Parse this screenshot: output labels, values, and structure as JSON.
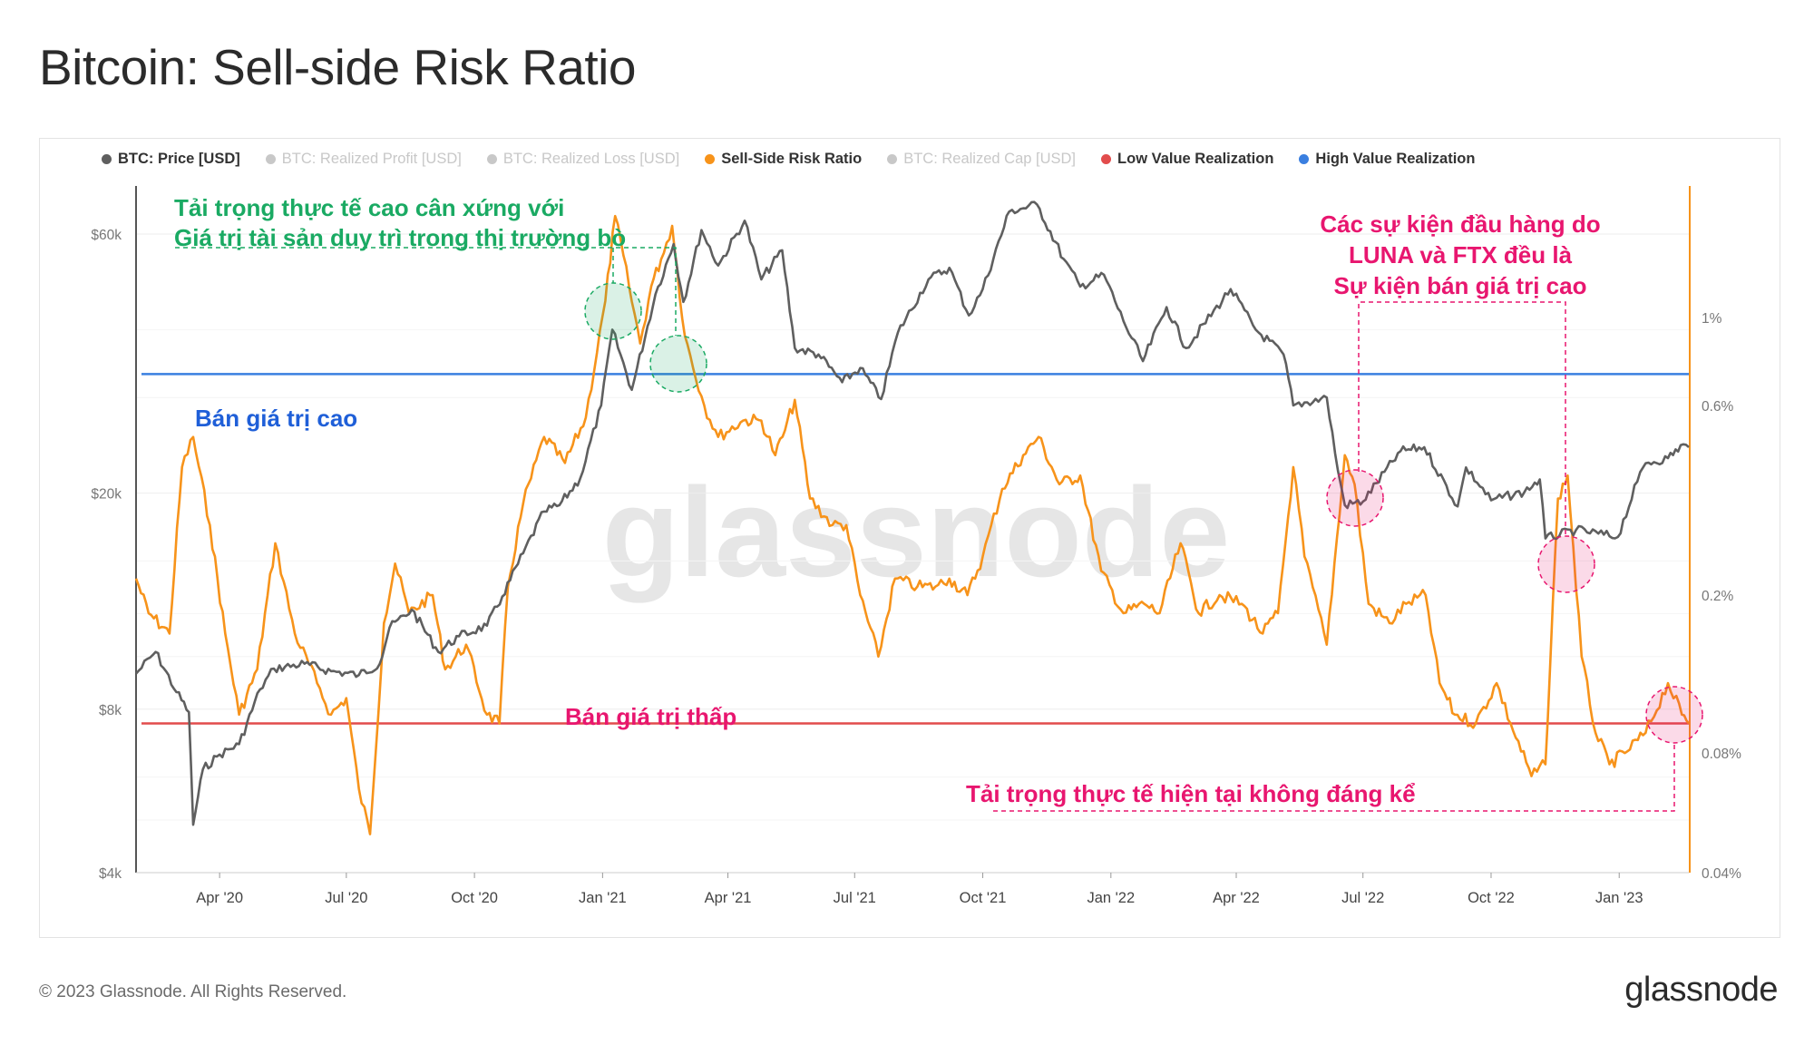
{
  "title": "Bitcoin: Sell-side Risk Ratio",
  "legend": [
    {
      "label": "BTC: Price [USD]",
      "color": "#5f5f5f",
      "active": true
    },
    {
      "label": "BTC: Realized Profit [USD]",
      "color": "#1a9e3f",
      "active": false
    },
    {
      "label": "BTC: Realized Loss [USD]",
      "color": "#e8166f",
      "active": false
    },
    {
      "label": "Sell-Side Risk Ratio",
      "color": "#f7931a",
      "active": true
    },
    {
      "label": "BTC: Realized Cap [USD]",
      "color": "#e8630c",
      "active": false
    },
    {
      "label": "Low Value Realization",
      "color": "#e24c4c",
      "active": true
    },
    {
      "label": "High Value Realization",
      "color": "#3a7fe0",
      "active": true
    }
  ],
  "footer": "© 2023 Glassnode. All Rights Reserved.",
  "logo": "glassnode",
  "watermark": "glassnode",
  "annotations": {
    "high_value": "Bán giá trị cao",
    "low_value": "Bán giá trị thấp",
    "bull_line1": "Tải trọng thực tế cao cân xứng với",
    "bull_line2": "Giá trị tài sản duy trì trong thị trường bò",
    "capit_line1": "Các sự kiện đầu hàng do",
    "capit_line2": "LUNA và FTX đều là",
    "capit_line3": "Sự kiện bán giá trị cao",
    "current": "Tải trọng thực tế hiện tại không đáng kể"
  },
  "colors": {
    "price": "#5f5f5f",
    "ratio": "#f7931a",
    "high": "#3a7fe0",
    "low": "#e24c4c",
    "green": "#1aaa63",
    "pink": "#e8166f"
  },
  "chart_data": {
    "type": "line",
    "x_ticks": [
      "Apr '20",
      "Jul '20",
      "Oct '20",
      "Jan '21",
      "Apr '21",
      "Jul '21",
      "Oct '21",
      "Jan '22",
      "Apr '22",
      "Jul '22",
      "Oct '22",
      "Jan '23"
    ],
    "y_left_ticks": [
      "$60k",
      "$20k",
      "$8k",
      "$4k"
    ],
    "y_right_ticks": [
      "1%",
      "0.6%",
      "0.2%",
      "0.08%",
      "0.04%"
    ],
    "y_left_scale": "log",
    "y_right_scale": "log",
    "x_range": [
      "2020-02-01",
      "2023-02-20"
    ],
    "y_left_range": [
      4000,
      75000
    ],
    "y_right_range": [
      0.04,
      2.2
    ],
    "high_value_level": 0.72,
    "low_value_level": 0.095,
    "series": [
      {
        "name": "BTC: Price [USD]",
        "axis": "left",
        "points": [
          [
            "2020-02-01",
            9300
          ],
          [
            "2020-02-15",
            10200
          ],
          [
            "2020-03-01",
            8600
          ],
          [
            "2020-03-10",
            7900
          ],
          [
            "2020-03-13",
            4900
          ],
          [
            "2020-03-20",
            6200
          ],
          [
            "2020-04-01",
            6600
          ],
          [
            "2020-04-15",
            6900
          ],
          [
            "2020-04-30",
            8700
          ],
          [
            "2020-05-10",
            9500
          ],
          [
            "2020-06-01",
            9700
          ],
          [
            "2020-06-20",
            9400
          ],
          [
            "2020-07-10",
            9250
          ],
          [
            "2020-07-25",
            9700
          ],
          [
            "2020-08-01",
            11300
          ],
          [
            "2020-08-17",
            12200
          ],
          [
            "2020-09-05",
            10200
          ],
          [
            "2020-09-20",
            10900
          ],
          [
            "2020-10-10",
            11400
          ],
          [
            "2020-10-21",
            12900
          ],
          [
            "2020-11-05",
            15500
          ],
          [
            "2020-11-20",
            18500
          ],
          [
            "2020-12-01",
            19000
          ],
          [
            "2020-12-16",
            21300
          ],
          [
            "2020-12-31",
            29000
          ],
          [
            "2021-01-08",
            40000
          ],
          [
            "2021-01-22",
            31000
          ],
          [
            "2021-02-08",
            46500
          ],
          [
            "2021-02-21",
            57500
          ],
          [
            "2021-02-28",
            45000
          ],
          [
            "2021-03-13",
            61000
          ],
          [
            "2021-03-25",
            52500
          ],
          [
            "2021-04-13",
            63500
          ],
          [
            "2021-04-25",
            49500
          ],
          [
            "2021-05-10",
            56000
          ],
          [
            "2021-05-19",
            37000
          ],
          [
            "2021-06-05",
            36000
          ],
          [
            "2021-06-22",
            32000
          ],
          [
            "2021-07-05",
            34000
          ],
          [
            "2021-07-20",
            29800
          ],
          [
            "2021-08-01",
            39500
          ],
          [
            "2021-08-23",
            49500
          ],
          [
            "2021-09-07",
            52000
          ],
          [
            "2021-09-21",
            42500
          ],
          [
            "2021-10-01",
            47500
          ],
          [
            "2021-10-20",
            66000
          ],
          [
            "2021-11-09",
            68000
          ],
          [
            "2021-11-28",
            54000
          ],
          [
            "2021-12-10",
            48000
          ],
          [
            "2021-12-27",
            50500
          ],
          [
            "2022-01-10",
            41500
          ],
          [
            "2022-01-24",
            35000
          ],
          [
            "2022-02-10",
            44000
          ],
          [
            "2022-02-24",
            37000
          ],
          [
            "2022-03-28",
            47500
          ],
          [
            "2022-04-15",
            40000
          ],
          [
            "2022-05-05",
            36000
          ],
          [
            "2022-05-12",
            29000
          ],
          [
            "2022-06-05",
            30000
          ],
          [
            "2022-06-13",
            22000
          ],
          [
            "2022-06-18",
            19000
          ],
          [
            "2022-07-01",
            19300
          ],
          [
            "2022-07-28",
            23900
          ],
          [
            "2022-08-14",
            24300
          ],
          [
            "2022-09-07",
            18900
          ],
          [
            "2022-09-13",
            22300
          ],
          [
            "2022-10-01",
            19400
          ],
          [
            "2022-10-25",
            20100
          ],
          [
            "2022-11-05",
            21200
          ],
          [
            "2022-11-09",
            16500
          ],
          [
            "2022-12-01",
            17100
          ],
          [
            "2022-12-31",
            16600
          ],
          [
            "2023-01-14",
            21000
          ],
          [
            "2023-01-20",
            22700
          ],
          [
            "2023-02-05",
            23200
          ],
          [
            "2023-02-16",
            24600
          ],
          [
            "2023-02-20",
            24300
          ]
        ]
      },
      {
        "name": "Sell-Side Risk Ratio",
        "axis": "right",
        "points": [
          [
            "2020-02-01",
            0.22
          ],
          [
            "2020-02-10",
            0.18
          ],
          [
            "2020-02-25",
            0.16
          ],
          [
            "2020-03-05",
            0.42
          ],
          [
            "2020-03-13",
            0.5
          ],
          [
            "2020-03-25",
            0.3
          ],
          [
            "2020-04-05",
            0.16
          ],
          [
            "2020-04-15",
            0.1
          ],
          [
            "2020-04-28",
            0.13
          ],
          [
            "2020-05-11",
            0.27
          ],
          [
            "2020-05-25",
            0.16
          ],
          [
            "2020-06-10",
            0.12
          ],
          [
            "2020-06-20",
            0.1
          ],
          [
            "2020-07-01",
            0.11
          ],
          [
            "2020-07-10",
            0.065
          ],
          [
            "2020-07-18",
            0.05
          ],
          [
            "2020-07-28",
            0.17
          ],
          [
            "2020-08-05",
            0.24
          ],
          [
            "2020-08-15",
            0.18
          ],
          [
            "2020-09-01",
            0.2
          ],
          [
            "2020-09-10",
            0.13
          ],
          [
            "2020-09-25",
            0.15
          ],
          [
            "2020-10-10",
            0.1
          ],
          [
            "2020-10-19",
            0.095
          ],
          [
            "2020-10-25",
            0.21
          ],
          [
            "2020-11-05",
            0.34
          ],
          [
            "2020-11-20",
            0.5
          ],
          [
            "2020-12-05",
            0.43
          ],
          [
            "2020-12-20",
            0.56
          ],
          [
            "2021-01-03",
            1.1
          ],
          [
            "2021-01-10",
            1.8
          ],
          [
            "2021-01-20",
            1.2
          ],
          [
            "2021-01-28",
            0.86
          ],
          [
            "2021-02-05",
            1.2
          ],
          [
            "2021-02-12",
            1.4
          ],
          [
            "2021-02-20",
            1.7
          ],
          [
            "2021-03-01",
            0.9
          ],
          [
            "2021-03-15",
            0.6
          ],
          [
            "2021-03-25",
            0.5
          ],
          [
            "2021-04-12",
            0.55
          ],
          [
            "2021-04-25",
            0.55
          ],
          [
            "2021-05-05",
            0.45
          ],
          [
            "2021-05-12",
            0.52
          ],
          [
            "2021-05-19",
            0.62
          ],
          [
            "2021-05-30",
            0.35
          ],
          [
            "2021-06-15",
            0.3
          ],
          [
            "2021-06-25",
            0.3
          ],
          [
            "2021-07-05",
            0.2
          ],
          [
            "2021-07-18",
            0.14
          ],
          [
            "2021-07-30",
            0.22
          ],
          [
            "2021-08-15",
            0.21
          ],
          [
            "2021-08-28",
            0.21
          ],
          [
            "2021-09-07",
            0.22
          ],
          [
            "2021-09-20",
            0.2
          ],
          [
            "2021-10-01",
            0.25
          ],
          [
            "2021-10-15",
            0.37
          ],
          [
            "2021-10-30",
            0.45
          ],
          [
            "2021-11-10",
            0.5
          ],
          [
            "2021-11-25",
            0.38
          ],
          [
            "2021-12-10",
            0.4
          ],
          [
            "2021-12-25",
            0.23
          ],
          [
            "2022-01-10",
            0.18
          ],
          [
            "2022-01-25",
            0.19
          ],
          [
            "2022-02-05",
            0.18
          ],
          [
            "2022-02-20",
            0.27
          ],
          [
            "2022-03-05",
            0.18
          ],
          [
            "2022-03-20",
            0.2
          ],
          [
            "2022-04-05",
            0.19
          ],
          [
            "2022-04-20",
            0.16
          ],
          [
            "2022-05-01",
            0.18
          ],
          [
            "2022-05-12",
            0.42
          ],
          [
            "2022-05-20",
            0.25
          ],
          [
            "2022-06-05",
            0.15
          ],
          [
            "2022-06-18",
            0.45
          ],
          [
            "2022-06-25",
            0.38
          ],
          [
            "2022-07-05",
            0.19
          ],
          [
            "2022-07-20",
            0.17
          ],
          [
            "2022-08-01",
            0.19
          ],
          [
            "2022-08-15",
            0.2
          ],
          [
            "2022-08-25",
            0.12
          ],
          [
            "2022-09-05",
            0.1
          ],
          [
            "2022-09-20",
            0.095
          ],
          [
            "2022-10-05",
            0.12
          ],
          [
            "2022-10-15",
            0.095
          ],
          [
            "2022-10-30",
            0.07
          ],
          [
            "2022-11-09",
            0.075
          ],
          [
            "2022-11-18",
            0.35
          ],
          [
            "2022-11-25",
            0.4
          ],
          [
            "2022-12-05",
            0.14
          ],
          [
            "2022-12-15",
            0.09
          ],
          [
            "2022-12-25",
            0.075
          ],
          [
            "2023-01-05",
            0.08
          ],
          [
            "2023-01-20",
            0.09
          ],
          [
            "2023-02-05",
            0.12
          ],
          [
            "2023-02-15",
            0.1
          ],
          [
            "2023-02-20",
            0.095
          ]
        ]
      }
    ]
  }
}
